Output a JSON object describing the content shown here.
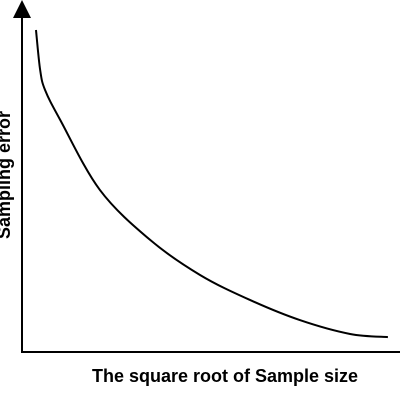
{
  "chart_data": {
    "type": "line",
    "x_label": "The square root of Sample size",
    "y_label": "Sampling error",
    "xlim": [
      0,
      1
    ],
    "ylim": [
      0,
      1
    ],
    "x": [
      0.037,
      0.048,
      0.061,
      0.101,
      0.206,
      0.339,
      0.471,
      0.603,
      0.735,
      0.868,
      0.968
    ],
    "values": [
      0.928,
      0.813,
      0.755,
      0.669,
      0.467,
      0.323,
      0.222,
      0.15,
      0.092,
      0.052,
      0.043
    ],
    "color": "#000000"
  }
}
